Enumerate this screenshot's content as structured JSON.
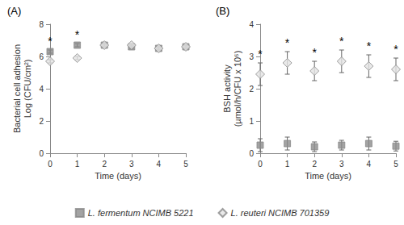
{
  "chart_data": [
    {
      "type": "scatter",
      "title": "(A)",
      "xlabel": "Time (days)",
      "ylabel": "Bacterial cell adhesion\nLog (CFU/cm²)",
      "xlim": [
        0,
        5
      ],
      "xticks": [
        0,
        1,
        2,
        3,
        4,
        5
      ],
      "ylim": [
        0,
        8
      ],
      "yticks": [
        0,
        2,
        4,
        6,
        8
      ],
      "grid": false,
      "legend": "bottom",
      "series": [
        {
          "name": "L. fermentum NCIMB 5221",
          "color": "#8c8c8c",
          "marker": "square",
          "x": [
            0,
            1,
            2,
            3,
            4,
            5
          ],
          "values": [
            6.3,
            6.7,
            6.7,
            6.6,
            6.5,
            6.6
          ],
          "errors": [
            0.1,
            0.1,
            0.1,
            0.1,
            0.1,
            0.1
          ]
        },
        {
          "name": "L. reuteri NCIMB 701359",
          "color": "#e3e3e3",
          "marker": "diamond",
          "x": [
            0,
            1,
            2,
            3,
            4,
            5
          ],
          "values": [
            5.7,
            5.9,
            6.7,
            6.7,
            6.5,
            6.6
          ],
          "errors": [
            0.1,
            0.1,
            0.1,
            0.1,
            0.1,
            0.1
          ]
        }
      ],
      "annotations": [
        {
          "text": "*",
          "x": 0,
          "y": 6.6
        },
        {
          "text": "*",
          "x": 1,
          "y": 7.0
        }
      ]
    },
    {
      "type": "scatter",
      "title": "(B)",
      "xlabel": "Time (days)",
      "ylabel": "BSH activity\n(µmol/h/CFU x 10⁶)",
      "xlim": [
        0,
        5
      ],
      "xticks": [
        0,
        1,
        2,
        3,
        4,
        5
      ],
      "ylim": [
        0,
        4
      ],
      "yticks": [
        0,
        1,
        2,
        3,
        4
      ],
      "grid": false,
      "legend": "bottom",
      "series": [
        {
          "name": "L. fermentum NCIMB 5221",
          "color": "#8c8c8c",
          "marker": "square",
          "x": [
            0,
            1,
            2,
            3,
            4,
            5
          ],
          "values": [
            0.25,
            0.3,
            0.2,
            0.25,
            0.3,
            0.22
          ],
          "errors": [
            0.2,
            0.2,
            0.15,
            0.15,
            0.2,
            0.15
          ]
        },
        {
          "name": "L. reuteri NCIMB 701359",
          "color": "#e3e3e3",
          "marker": "diamond",
          "x": [
            0,
            1,
            2,
            3,
            4,
            5
          ],
          "values": [
            2.45,
            2.8,
            2.55,
            2.85,
            2.7,
            2.6
          ],
          "errors": [
            0.35,
            0.35,
            0.3,
            0.35,
            0.35,
            0.35
          ]
        }
      ],
      "annotations": [
        {
          "text": "*",
          "x": 0,
          "y": 2.9
        },
        {
          "text": "*",
          "x": 1,
          "y": 3.25
        },
        {
          "text": "*",
          "x": 2,
          "y": 2.95
        },
        {
          "text": "*",
          "x": 3,
          "y": 3.3
        },
        {
          "text": "*",
          "x": 4,
          "y": 3.15
        },
        {
          "text": "*",
          "x": 5,
          "y": 3.05
        }
      ]
    }
  ]
}
